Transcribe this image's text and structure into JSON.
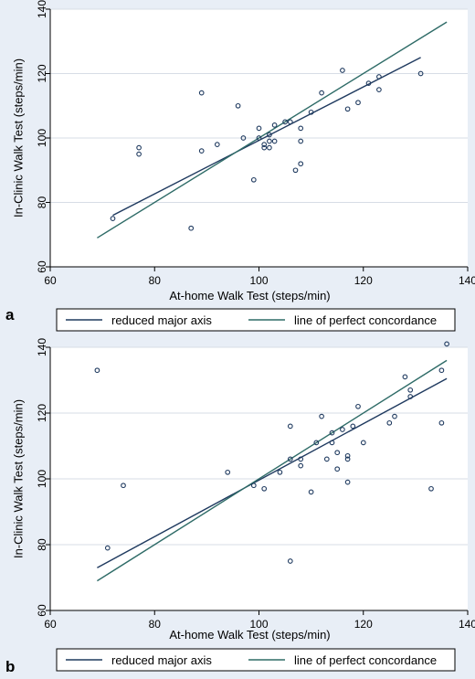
{
  "panels": [
    {
      "letter": "a",
      "legend": {
        "items": [
          {
            "label": "reduced major axis",
            "color": "#1f3a5f"
          },
          {
            "label": "line of perfect concordance",
            "color": "#2e6b67"
          }
        ]
      }
    },
    {
      "letter": "b",
      "legend": {
        "items": [
          {
            "label": "reduced major axis",
            "color": "#1f3a5f"
          },
          {
            "label": "line of perfect concordance",
            "color": "#2e6b67"
          }
        ]
      }
    }
  ],
  "chart_data": [
    {
      "type": "scatter",
      "panel": "a",
      "title": "",
      "xlabel": "At-home Walk Test (steps/min)",
      "ylabel": "In-Clinic Walk Test (steps/min)",
      "xlim": [
        60,
        140
      ],
      "ylim": [
        60,
        140
      ],
      "xticks": [
        60,
        80,
        100,
        120,
        140
      ],
      "yticks": [
        60,
        80,
        100,
        120,
        140
      ],
      "grid": "horizontal",
      "points": [
        [
          72,
          75
        ],
        [
          77,
          97
        ],
        [
          77,
          95
        ],
        [
          87,
          72
        ],
        [
          89,
          114
        ],
        [
          89,
          96
        ],
        [
          92,
          98
        ],
        [
          96,
          110
        ],
        [
          97,
          100
        ],
        [
          99,
          87
        ],
        [
          100,
          103
        ],
        [
          100,
          100
        ],
        [
          101,
          98
        ],
        [
          101,
          97
        ],
        [
          102,
          101
        ],
        [
          102,
          99
        ],
        [
          102,
          97
        ],
        [
          103,
          104
        ],
        [
          103,
          99
        ],
        [
          105,
          105
        ],
        [
          106,
          105
        ],
        [
          107,
          90
        ],
        [
          108,
          103
        ],
        [
          108,
          99
        ],
        [
          108,
          92
        ],
        [
          110,
          108
        ],
        [
          112,
          114
        ],
        [
          116,
          121
        ],
        [
          117,
          109
        ],
        [
          119,
          111
        ],
        [
          121,
          117
        ],
        [
          123,
          119
        ],
        [
          123,
          115
        ],
        [
          131,
          120
        ]
      ],
      "series": [
        {
          "name": "reduced major axis",
          "color": "#1f3a5f",
          "x": [
            72,
            131
          ],
          "y": [
            76,
            125
          ]
        },
        {
          "name": "line of perfect concordance",
          "color": "#2e6b67",
          "x": [
            69,
            136
          ],
          "y": [
            69,
            136
          ]
        }
      ],
      "legend": "bottom"
    },
    {
      "type": "scatter",
      "panel": "b",
      "title": "",
      "xlabel": "At-home Walk Test (steps/min)",
      "ylabel": "In-Clinic Walk Test (steps/min)",
      "xlim": [
        60,
        140
      ],
      "ylim": [
        60,
        140
      ],
      "xticks": [
        60,
        80,
        100,
        120,
        140
      ],
      "yticks": [
        60,
        80,
        100,
        120,
        140
      ],
      "grid": "horizontal",
      "points": [
        [
          69,
          133
        ],
        [
          71,
          79
        ],
        [
          74,
          98
        ],
        [
          94,
          102
        ],
        [
          99,
          98
        ],
        [
          101,
          97
        ],
        [
          104,
          102
        ],
        [
          106,
          116
        ],
        [
          106,
          106
        ],
        [
          106,
          75
        ],
        [
          108,
          106
        ],
        [
          108,
          104
        ],
        [
          110,
          96
        ],
        [
          111,
          111
        ],
        [
          112,
          119
        ],
        [
          113,
          106
        ],
        [
          114,
          114
        ],
        [
          114,
          111
        ],
        [
          115,
          108
        ],
        [
          115,
          103
        ],
        [
          116,
          115
        ],
        [
          117,
          107
        ],
        [
          117,
          106
        ],
        [
          117,
          99
        ],
        [
          118,
          116
        ],
        [
          119,
          122
        ],
        [
          120,
          111
        ],
        [
          125,
          117
        ],
        [
          126,
          119
        ],
        [
          128,
          131
        ],
        [
          129,
          127
        ],
        [
          129,
          125
        ],
        [
          133,
          97
        ],
        [
          135,
          133
        ],
        [
          135,
          117
        ],
        [
          136,
          141
        ]
      ],
      "series": [
        {
          "name": "reduced major axis",
          "color": "#1f3a5f",
          "x": [
            69,
            136
          ],
          "y": [
            73,
            130.5
          ]
        },
        {
          "name": "line of perfect concordance",
          "color": "#2e6b67",
          "x": [
            69,
            136
          ],
          "y": [
            69,
            136
          ]
        }
      ],
      "legend": "bottom"
    }
  ]
}
